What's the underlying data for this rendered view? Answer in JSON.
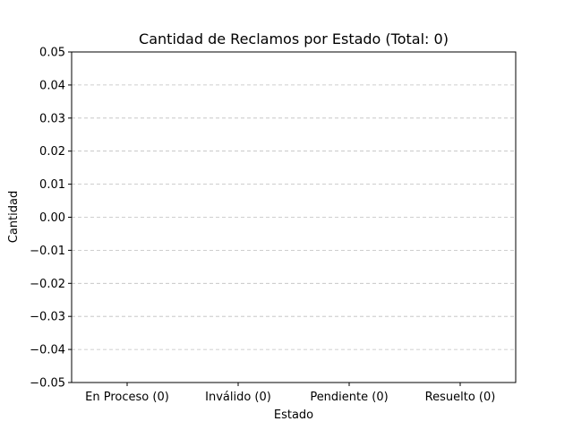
{
  "chart_data": {
    "type": "bar",
    "title": "Cantidad de Reclamos por Estado (Total: 0)",
    "xlabel": "Estado",
    "ylabel": "Cantidad",
    "categories": [
      "En Proceso (0)",
      "Inválido (0)",
      "Pendiente (0)",
      "Resuelto (0)"
    ],
    "values": [
      0,
      0,
      0,
      0
    ],
    "ylim": [
      -0.05,
      0.05
    ],
    "yticks": [
      -0.05,
      -0.04,
      -0.03,
      -0.02,
      -0.01,
      0.0,
      0.01,
      0.02,
      0.03,
      0.04,
      0.05
    ],
    "ytick_labels": [
      "−0.05",
      "−0.04",
      "−0.03",
      "−0.02",
      "−0.01",
      "0.00",
      "0.01",
      "0.02",
      "0.03",
      "0.04",
      "0.05"
    ],
    "grid": "y-dashed",
    "bar_color": "#1f77b4"
  }
}
